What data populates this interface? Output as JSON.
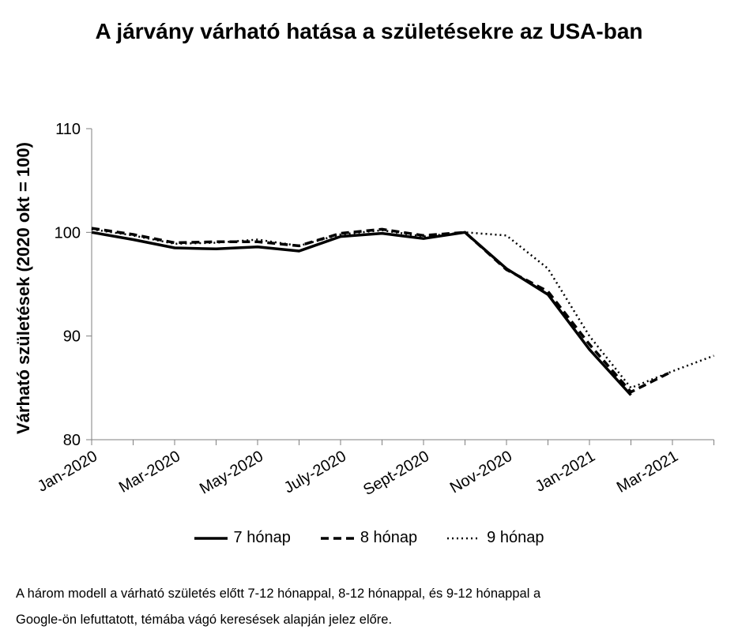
{
  "chart_data": {
    "type": "line",
    "title": "A járvány várható hatása a születésekre az USA-ban",
    "ylabel": "Várható születések (2020 okt = 100)",
    "xlabel": "",
    "ylim": [
      80,
      110
    ],
    "yticks": [
      80,
      90,
      100,
      110
    ],
    "x": [
      "Jan-2020",
      "Feb-2020",
      "Mar-2020",
      "Apr-2020",
      "May-2020",
      "Jun-2020",
      "July-2020",
      "Aug-2020",
      "Sept-2020",
      "Oct-2020",
      "Nov-2020",
      "Dec-2020",
      "Jan-2021",
      "Feb-2021",
      "Mar-2021",
      "Apr-2021"
    ],
    "xtick_labels": [
      "Jan-2020",
      "Mar-2020",
      "May-2020",
      "July-2020",
      "Sept-2020",
      "Nov-2020",
      "Jan-2021",
      "Mar-2021"
    ],
    "grid": false,
    "legend_position": "bottom",
    "series": [
      {
        "name": "7 hónap",
        "style": "solid",
        "values": [
          100.0,
          99.3,
          98.5,
          98.4,
          98.6,
          98.2,
          99.6,
          99.9,
          99.4,
          100.0,
          96.5,
          94.0,
          88.7,
          84.3,
          null,
          null
        ]
      },
      {
        "name": "8 hónap",
        "style": "dashed",
        "values": [
          100.4,
          99.8,
          99.0,
          99.1,
          99.1,
          98.7,
          99.9,
          100.3,
          99.7,
          100.0,
          96.4,
          94.3,
          89.2,
          84.6,
          86.6,
          null
        ]
      },
      {
        "name": "9 hónap",
        "style": "dotted",
        "values": [
          100.3,
          99.7,
          98.9,
          99.0,
          99.3,
          98.7,
          99.8,
          100.2,
          99.6,
          100.0,
          99.7,
          96.5,
          90.0,
          85.0,
          86.6,
          88.1
        ]
      }
    ]
  },
  "caption": {
    "line1": "A három modell a várható születés előtt 7-12 hónappal, 8-12 hónappal, és 9-12 hónappal a",
    "line2": "Google-ön lefuttatott, témába vágó keresések alapján jelez előre."
  }
}
